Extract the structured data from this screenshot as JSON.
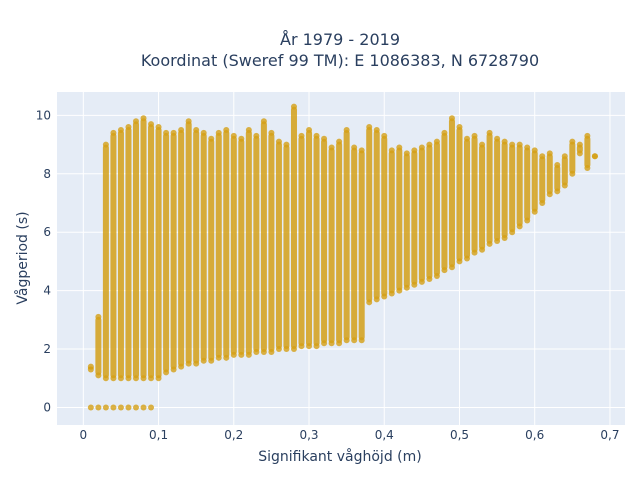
{
  "chart_data": {
    "type": "scatter",
    "title_line1": "År 1979 - 2019",
    "title_line2": "Koordinat (Sweref 99 TM): E 1086383, N 6728790",
    "xlabel": "Signifikant våghöjd (m)",
    "ylabel": "Vågperiod (s)",
    "xlim": [
      -0.035,
      0.72
    ],
    "ylim": [
      -0.6,
      10.8
    ],
    "xticks": [
      0,
      0.1,
      0.2,
      0.3,
      0.4,
      0.5,
      0.6,
      0.7
    ],
    "xtick_labels": [
      "0",
      "0,1",
      "0,2",
      "0,3",
      "0,4",
      "0,5",
      "0,6",
      "0,7"
    ],
    "yticks": [
      0,
      2,
      4,
      6,
      8,
      10
    ],
    "ytick_labels": [
      "0",
      "2",
      "4",
      "6",
      "8",
      "10"
    ],
    "grid": true,
    "marker_color": "#d4a017",
    "plot_bg": "#e5ecf6",
    "series": [
      {
        "values": {
          "x": [
            0.01,
            0.02,
            0.03,
            0.04,
            0.05,
            0.06,
            0.07,
            0.08,
            0.09,
            0.1,
            0.11,
            0.12,
            0.13,
            0.14,
            0.15,
            0.16,
            0.17,
            0.18,
            0.19,
            0.2,
            0.21,
            0.22,
            0.23,
            0.24,
            0.25,
            0.26,
            0.27,
            0.28,
            0.29,
            0.3,
            0.31,
            0.32,
            0.33,
            0.34,
            0.35,
            0.36,
            0.37,
            0.38,
            0.39,
            0.4,
            0.41,
            0.42,
            0.43,
            0.44,
            0.45,
            0.46,
            0.47,
            0.48,
            0.49,
            0.5,
            0.51,
            0.52,
            0.53,
            0.54,
            0.55,
            0.56,
            0.57,
            0.58,
            0.59,
            0.6,
            0.61,
            0.62,
            0.63,
            0.64,
            0.65,
            0.66,
            0.67,
            0.68
          ],
          "y_min": [
            1.3,
            1.1,
            1.0,
            1.0,
            1.0,
            1.0,
            1.0,
            1.0,
            1.0,
            1.0,
            1.2,
            1.3,
            1.4,
            1.5,
            1.5,
            1.6,
            1.6,
            1.7,
            1.7,
            1.8,
            1.8,
            1.8,
            1.9,
            1.9,
            1.9,
            2.0,
            2.0,
            2.0,
            2.1,
            2.1,
            2.1,
            2.2,
            2.2,
            2.2,
            2.3,
            2.3,
            2.3,
            3.6,
            3.7,
            3.8,
            3.9,
            4.0,
            4.1,
            4.2,
            4.3,
            4.4,
            4.5,
            4.7,
            4.8,
            5.0,
            5.1,
            5.3,
            5.4,
            5.6,
            5.7,
            5.8,
            6.0,
            6.2,
            6.4,
            6.7,
            7.0,
            7.3,
            7.4,
            7.6,
            8.0,
            8.7,
            8.2,
            8.6
          ],
          "y_max": [
            1.4,
            3.1,
            9.0,
            9.4,
            9.5,
            9.6,
            9.8,
            9.9,
            9.7,
            9.6,
            9.4,
            9.4,
            9.5,
            9.8,
            9.5,
            9.4,
            9.2,
            9.4,
            9.5,
            9.3,
            9.2,
            9.5,
            9.3,
            9.8,
            9.4,
            9.1,
            9.0,
            10.3,
            9.3,
            9.5,
            9.3,
            9.2,
            8.9,
            9.1,
            9.5,
            8.9,
            8.8,
            9.6,
            9.5,
            9.3,
            8.8,
            8.9,
            8.7,
            8.8,
            8.9,
            9.0,
            9.1,
            9.4,
            9.9,
            9.6,
            9.2,
            9.3,
            9.0,
            9.4,
            9.2,
            9.1,
            9.0,
            9.0,
            8.9,
            8.8,
            8.6,
            8.7,
            8.3,
            8.6,
            9.1,
            9.0,
            9.3,
            8.6
          ]
        }
      }
    ],
    "zero_wave_height_points": {
      "x": [
        0.01,
        0.02,
        0.03,
        0.04,
        0.05,
        0.06,
        0.07,
        0.08,
        0.09
      ],
      "y": [
        0,
        0,
        0,
        0,
        0,
        0,
        0,
        0,
        0
      ]
    }
  }
}
